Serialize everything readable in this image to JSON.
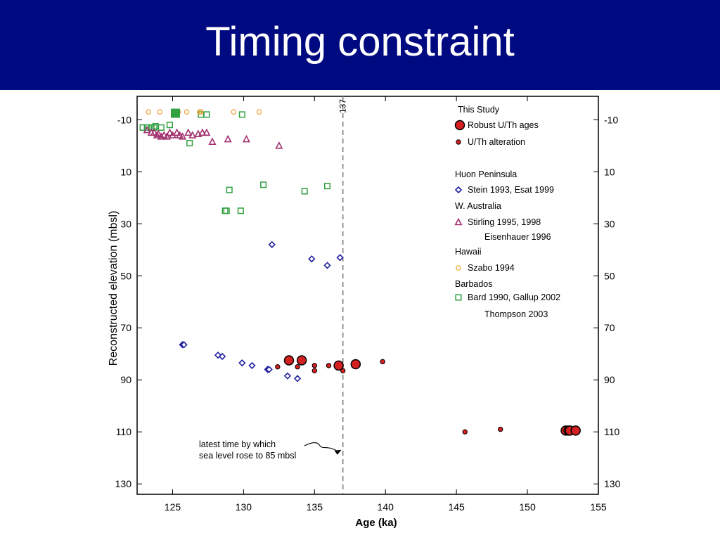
{
  "slide": {
    "title": "Timing constraint",
    "title_bar_color": "#000a80"
  },
  "chart_data": {
    "type": "scatter",
    "title": "",
    "xlabel": "Age (ka)",
    "ylabel": "Reconstructed elevation (mbsl)",
    "xlim": [
      122.5,
      155
    ],
    "ylim": [
      -19,
      134
    ],
    "y_inverted": true,
    "xticks": [
      125,
      130,
      135,
      140,
      145,
      150,
      155
    ],
    "yticks": [
      -10,
      10,
      30,
      50,
      70,
      90,
      110,
      130
    ],
    "ytick_labels_right": true,
    "grid": false,
    "reference_line": {
      "x": 137,
      "label": "137",
      "style": "dashed",
      "color": "#808080"
    },
    "annotation": {
      "lines": [
        "latest time by which",
        "sea level rose to 85 mbsl"
      ],
      "arrow_to": [
        137,
        115
      ]
    },
    "legend": {
      "placement": "top-right",
      "entries": [
        {
          "kind": "header",
          "text": "This Study"
        },
        {
          "kind": "item",
          "text": "Robust U/Th ages",
          "series": "robust"
        },
        {
          "kind": "item",
          "text": "U/Th alteration",
          "series": "altered"
        },
        {
          "kind": "header",
          "text": "Huon Peninsula"
        },
        {
          "kind": "item",
          "text": "Stein 1993, Esat 1999",
          "series": "huon"
        },
        {
          "kind": "header",
          "text": "W. Australia"
        },
        {
          "kind": "item",
          "text": "Stirling 1995, 1998",
          "series": "waus"
        },
        {
          "kind": "sub",
          "text": "Eisenhauer 1996"
        },
        {
          "kind": "header",
          "text": "Hawaii"
        },
        {
          "kind": "item",
          "text": "Szabo 1994",
          "series": "hawaii"
        },
        {
          "kind": "header",
          "text": "Barbados"
        },
        {
          "kind": "item",
          "text": "Bard 1990, Gallup 2002",
          "series": "barbados"
        },
        {
          "kind": "sub",
          "text": "Thompson 2003"
        }
      ]
    },
    "series": [
      {
        "id": "robust",
        "name": "Robust U/Th ages",
        "marker": "circle-large",
        "fill": "#d42020",
        "stroke": "#000000",
        "points": [
          [
            133.2,
            82.5
          ],
          [
            134.1,
            82.5
          ],
          [
            136.7,
            84.5
          ],
          [
            137.9,
            84
          ],
          [
            152.7,
            109.5
          ],
          [
            152.9,
            109.5
          ],
          [
            153.0,
            109.5
          ],
          [
            153.4,
            109.5
          ]
        ]
      },
      {
        "id": "altered",
        "name": "U/Th alteration",
        "marker": "circle-small",
        "fill": "#d42020",
        "stroke": "#000000",
        "points": [
          [
            132.4,
            85
          ],
          [
            133.8,
            85
          ],
          [
            135.0,
            84.5
          ],
          [
            135.0,
            86.5
          ],
          [
            136.0,
            84.5
          ],
          [
            137.0,
            86.5
          ],
          [
            139.8,
            83
          ],
          [
            145.6,
            110
          ],
          [
            148.1,
            109
          ]
        ]
      },
      {
        "id": "huon",
        "name": "Stein 1993, Esat 1999",
        "marker": "diamond",
        "stroke": "#2020a0",
        "points": [
          [
            125.7,
            76.5
          ],
          [
            125.8,
            76.5
          ],
          [
            128.2,
            80.5
          ],
          [
            128.5,
            81
          ],
          [
            129.9,
            83.5
          ],
          [
            130.6,
            84.5
          ],
          [
            131.7,
            86
          ],
          [
            131.8,
            86
          ],
          [
            133.1,
            88.5
          ],
          [
            133.8,
            89.5
          ],
          [
            132.0,
            38
          ],
          [
            134.8,
            43.5
          ],
          [
            135.9,
            46
          ],
          [
            136.8,
            43
          ]
        ]
      },
      {
        "id": "waus",
        "name": "Stirling 1995, 1998",
        "marker": "triangle",
        "stroke": "#a0306e",
        "points": [
          [
            123.2,
            -6
          ],
          [
            123.5,
            -5
          ],
          [
            123.7,
            -5
          ],
          [
            123.9,
            -4
          ],
          [
            124.0,
            -4.5
          ],
          [
            124.2,
            -3.5
          ],
          [
            124.4,
            -4
          ],
          [
            124.6,
            -3.5
          ],
          [
            124.8,
            -5
          ],
          [
            125.0,
            -4
          ],
          [
            125.3,
            -5
          ],
          [
            125.5,
            -4
          ],
          [
            125.7,
            -3.5
          ],
          [
            126.1,
            -5
          ],
          [
            126.4,
            -4
          ],
          [
            126.8,
            -4.5
          ],
          [
            127.1,
            -5
          ],
          [
            127.4,
            -5
          ],
          [
            127.8,
            -1.5
          ],
          [
            128.9,
            -2.5
          ],
          [
            130.2,
            -2.5
          ],
          [
            132.5,
            0
          ]
        ]
      },
      {
        "id": "hawaii",
        "name": "Szabo 1994",
        "marker": "circle-open",
        "stroke": "#f0a030",
        "points": [
          [
            123.3,
            -13
          ],
          [
            124.1,
            -13
          ],
          [
            125.4,
            -13
          ],
          [
            126.0,
            -13
          ],
          [
            126.9,
            -13
          ],
          [
            127.0,
            -13
          ],
          [
            129.3,
            -13
          ],
          [
            131.1,
            -13
          ]
        ]
      },
      {
        "id": "barbados",
        "name": "Bard 1990, Gallup 2002",
        "marker": "square-open",
        "stroke": "#30a040",
        "points": [
          [
            122.9,
            -7
          ],
          [
            123.2,
            -7
          ],
          [
            123.5,
            -7
          ],
          [
            123.7,
            -7
          ],
          [
            123.8,
            -7.5
          ],
          [
            124.2,
            -7
          ],
          [
            124.8,
            -8
          ],
          [
            127.0,
            -12
          ],
          [
            127.4,
            -12
          ],
          [
            129.9,
            -12
          ],
          [
            126.2,
            -1
          ],
          [
            129.0,
            17
          ],
          [
            131.4,
            15
          ],
          [
            134.3,
            17.5
          ],
          [
            135.9,
            15.5
          ],
          [
            128.7,
            25
          ],
          [
            128.8,
            25
          ],
          [
            129.8,
            25
          ]
        ]
      },
      {
        "id": "barbados-filled",
        "name": "Thompson 2003",
        "marker": "square-filled",
        "fill": "#30a040",
        "points": [
          [
            125.2,
            -12.5
          ]
        ]
      }
    ]
  }
}
